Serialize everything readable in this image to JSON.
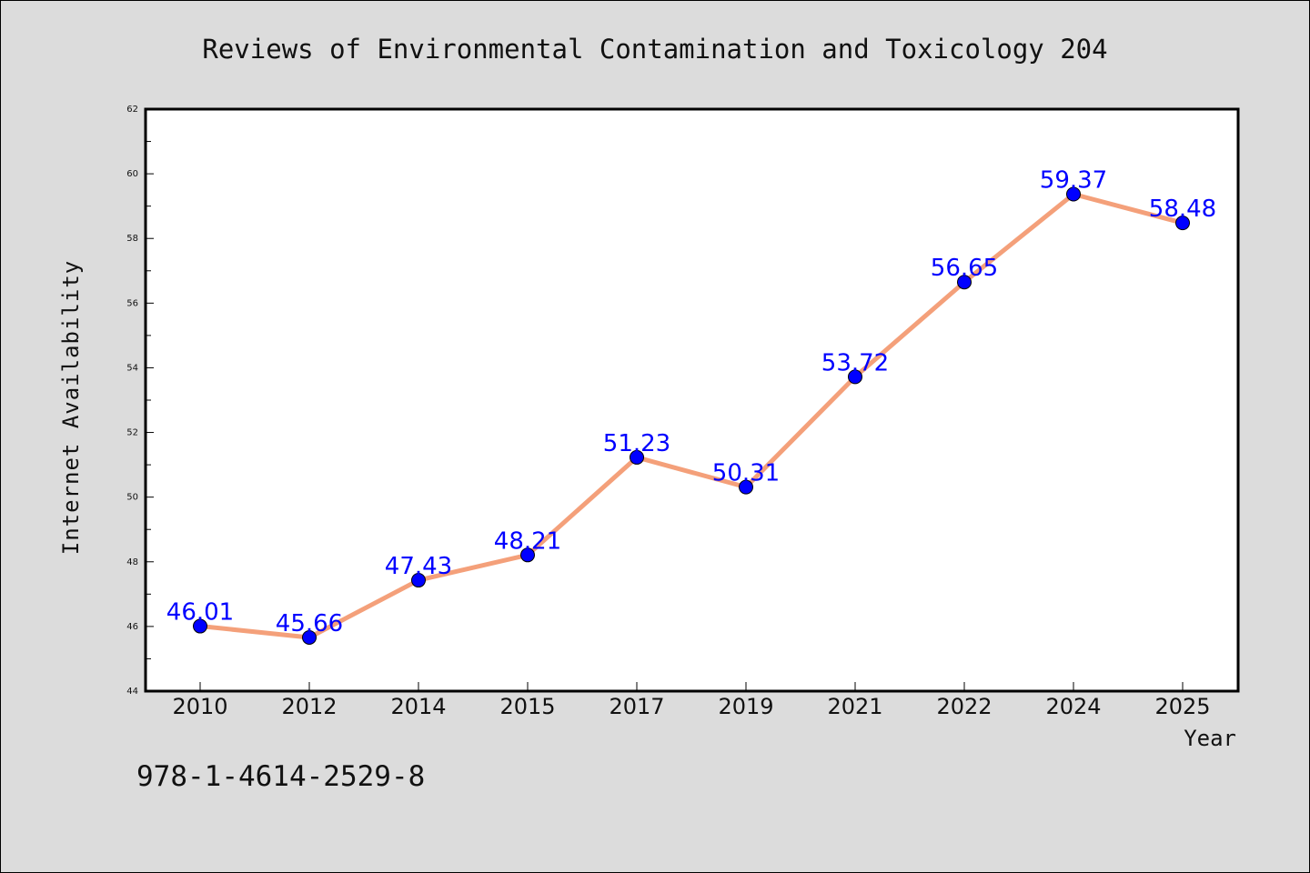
{
  "chart_data": {
    "type": "line",
    "title": "Reviews of Environmental Contamination and Toxicology 204",
    "xlabel": "Year",
    "ylabel": "Internet Availability",
    "categories": [
      "2010",
      "2012",
      "2014",
      "2015",
      "2017",
      "2019",
      "2021",
      "2022",
      "2024",
      "2025"
    ],
    "series": [
      {
        "values": [
          46.01,
          45.66,
          47.43,
          48.21,
          51.23,
          50.31,
          53.72,
          56.65,
          59.37,
          58.48
        ],
        "data_labels": [
          "46.01",
          "45.66",
          "47.43",
          "48.21",
          "51.23",
          "50.31",
          "53.72",
          "56.65",
          "59.37",
          "58.48"
        ],
        "line_color": "#f4a07a",
        "marker_color": "#0000ff"
      }
    ],
    "ylim": [
      44,
      62
    ],
    "yticks": [
      "44",
      "46",
      "48",
      "50",
      "52",
      "54",
      "56",
      "58",
      "60",
      "62"
    ],
    "grid": false,
    "legend": "none"
  },
  "footer": {
    "isbn": "978-1-4614-2529-8"
  },
  "colors": {
    "background": "#dcdcdc",
    "plot_area": "#ffffff",
    "line": "#f4a07a",
    "marker": "#0000ff",
    "data_label": "#0000ff"
  }
}
